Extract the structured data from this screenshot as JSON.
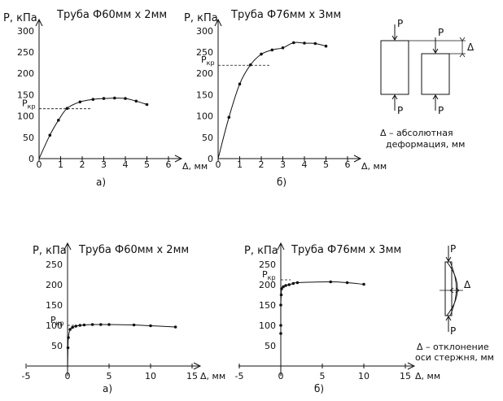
{
  "chart_data": [
    {
      "type": "line",
      "title": "Труба Ф60мм x 2мм",
      "xlabel": "Δ, мм",
      "ylabel": "P, кПа",
      "caption": "а)",
      "pkr_label": "P",
      "pkr_sub": "кр",
      "pkr_value": 117,
      "xlim": [
        0,
        6.5
      ],
      "ylim": [
        0,
        315
      ],
      "x_ticks": [
        "0",
        "1",
        "2",
        "3",
        "4",
        "5",
        "6"
      ],
      "y_ticks": [
        "0",
        "50",
        "100",
        "150",
        "200",
        "250",
        "300"
      ],
      "x_tick_values": [
        0,
        1,
        2,
        3,
        4,
        5,
        6
      ],
      "y_tick_values": [
        0,
        50,
        100,
        150,
        200,
        250,
        300
      ],
      "x": [
        0.5,
        0.9,
        1.3,
        1.9,
        2.5,
        3.0,
        3.5,
        4.0,
        4.5,
        5.0
      ],
      "y": [
        55,
        90,
        118,
        133,
        139,
        141,
        142,
        141,
        135,
        127
      ]
    },
    {
      "type": "line",
      "title": "Труба Ф76мм x 3мм",
      "xlabel": "Δ, мм",
      "ylabel": "P, кПа",
      "caption": "б)",
      "pkr_label": "P",
      "pkr_sub": "кр",
      "pkr_value": 219,
      "xlim": [
        0,
        6.5
      ],
      "ylim": [
        0,
        315
      ],
      "x_ticks": [
        "0",
        "1",
        "2",
        "3",
        "4",
        "5",
        "6"
      ],
      "y_ticks": [
        "0",
        "50",
        "100",
        "150",
        "200",
        "250",
        "300"
      ],
      "x_tick_values": [
        0,
        1,
        2,
        3,
        4,
        5,
        6
      ],
      "y_tick_values": [
        0,
        50,
        100,
        150,
        200,
        250,
        300
      ],
      "x": [
        0.5,
        1.0,
        1.5,
        2.0,
        2.5,
        3.0,
        3.5,
        4.0,
        4.5,
        5.0
      ],
      "y": [
        97,
        175,
        220,
        245,
        255,
        260,
        272,
        271,
        270,
        264
      ]
    },
    {
      "type": "line",
      "title": "Труба Ф60мм x 2мм",
      "xlabel": "Δ, мм",
      "ylabel": "P, кПа",
      "caption": "а)",
      "pkr_label": "P",
      "pkr_sub": "кр",
      "pkr_value": 100,
      "xlim": [
        -5,
        16
      ],
      "ylim": [
        0,
        260
      ],
      "x_ticks": [
        "-5",
        "0",
        "5",
        "10",
        "15"
      ],
      "y_ticks": [
        "50",
        "100",
        "150",
        "200",
        "250"
      ],
      "x_tick_values": [
        -5,
        0,
        5,
        10,
        15
      ],
      "y_tick_values": [
        50,
        100,
        150,
        200,
        250
      ],
      "x": [
        0.05,
        0.1,
        0.3,
        0.6,
        1.0,
        1.5,
        2.0,
        3.0,
        4.0,
        5.0,
        8.0,
        10.0,
        13.0
      ],
      "y": [
        45,
        70,
        90,
        95,
        98,
        100,
        101,
        102,
        102,
        102,
        101,
        99,
        96
      ]
    },
    {
      "type": "line",
      "title": "Труба Ф76мм x 3мм",
      "xlabel": "Δ, мм",
      "ylabel": "P, кПа",
      "caption": "б)",
      "pkr_label": "P",
      "pkr_sub": "кр",
      "pkr_value": 212,
      "xlim": [
        -5,
        16
      ],
      "ylim": [
        0,
        260
      ],
      "x_ticks": [
        "-5",
        "0",
        "5",
        "10",
        "15"
      ],
      "y_ticks": [
        "50",
        "100",
        "150",
        "200",
        "250"
      ],
      "x_tick_values": [
        -5,
        0,
        5,
        10,
        15
      ],
      "y_tick_values": [
        50,
        100,
        150,
        200,
        250
      ],
      "x": [
        0.0,
        0.0,
        0.0,
        0.05,
        0.1,
        0.3,
        0.6,
        1.0,
        1.5,
        2.0,
        6.0,
        8.0,
        10.0
      ],
      "y": [
        80,
        100,
        150,
        175,
        190,
        195,
        198,
        200,
        203,
        205,
        207,
        205,
        201
      ]
    }
  ],
  "schematic_top": {
    "p_label": "P",
    "delta_label": "Δ",
    "caption_line1": "Δ – абсолютная",
    "caption_line2": "деформация, мм"
  },
  "schematic_bottom": {
    "p_label": "P",
    "delta_label": "Δ",
    "caption_line1": "Δ – отклонение",
    "caption_line2": "оси стержня, мм"
  }
}
